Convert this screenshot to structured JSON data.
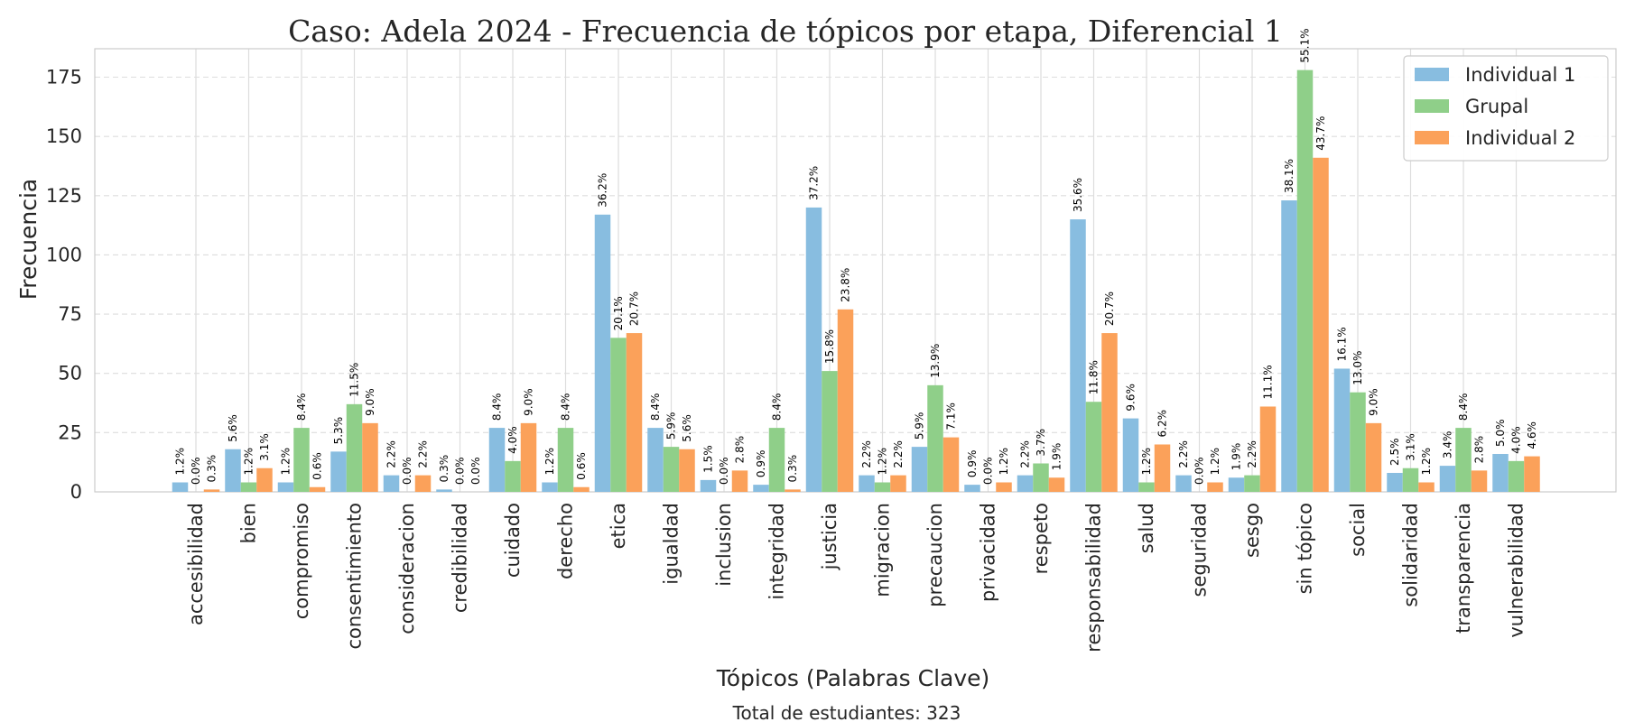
{
  "chart_data": {
    "type": "bar",
    "title": "Caso: Adela 2024 - Frecuencia de tópicos por etapa, Diferencial 1",
    "xlabel": "Tópicos (Palabras Clave)",
    "ylabel": "Frecuencia",
    "footer": "Total de estudiantes: 323",
    "ylim": [
      0,
      187
    ],
    "yticks": [
      0,
      25,
      50,
      75,
      100,
      125,
      150,
      175
    ],
    "grid": true,
    "legend_position": "top-right",
    "categories": [
      "accesibilidad",
      "bien",
      "compromiso",
      "consentimiento",
      "consideracion",
      "credibilidad",
      "cuidado",
      "derecho",
      "etica",
      "igualdad",
      "inclusion",
      "integridad",
      "justicia",
      "migracion",
      "precaucion",
      "privacidad",
      "respeto",
      "responsabilidad",
      "salud",
      "seguridad",
      "sesgo",
      "sin tópico",
      "social",
      "solidaridad",
      "transparencia",
      "vulnerabilidad"
    ],
    "series": [
      {
        "name": "Individual 1",
        "color": "#88bde0",
        "values": [
          4,
          18,
          4,
          17,
          7,
          1,
          27,
          4,
          117,
          27,
          5,
          3,
          120,
          7,
          19,
          3,
          7,
          115,
          31,
          7,
          6,
          123,
          52,
          8,
          11,
          16
        ],
        "labels": [
          "1.2%",
          "5.6%",
          "1.2%",
          "5.3%",
          "2.2%",
          "0.3%",
          "8.4%",
          "1.2%",
          "36.2%",
          "8.4%",
          "1.5%",
          "0.9%",
          "37.2%",
          "2.2%",
          "5.9%",
          "0.9%",
          "2.2%",
          "35.6%",
          "9.6%",
          "2.2%",
          "1.9%",
          "38.1%",
          "16.1%",
          "2.5%",
          "3.4%",
          "5.0%"
        ]
      },
      {
        "name": "Grupal",
        "color": "#8fcf89",
        "values": [
          0,
          4,
          27,
          37,
          0,
          0,
          13,
          27,
          65,
          19,
          0,
          27,
          51,
          4,
          45,
          0,
          12,
          38,
          4,
          0,
          7,
          178,
          42,
          10,
          27,
          13
        ],
        "labels": [
          "0.0%",
          "1.2%",
          "8.4%",
          "11.5%",
          "0.0%",
          "0.0%",
          "4.0%",
          "8.4%",
          "20.1%",
          "5.9%",
          "0.0%",
          "8.4%",
          "15.8%",
          "1.2%",
          "13.9%",
          "0.0%",
          "3.7%",
          "11.8%",
          "1.2%",
          "0.0%",
          "2.2%",
          "55.1%",
          "13.0%",
          "3.1%",
          "8.4%",
          "4.0%"
        ]
      },
      {
        "name": "Individual 2",
        "color": "#fba15a",
        "values": [
          1,
          10,
          2,
          29,
          7,
          0,
          29,
          2,
          67,
          18,
          9,
          1,
          77,
          7,
          23,
          4,
          6,
          67,
          20,
          4,
          36,
          141,
          29,
          4,
          9,
          15
        ],
        "labels": [
          "0.3%",
          "3.1%",
          "0.6%",
          "9.0%",
          "2.2%",
          "0.0%",
          "9.0%",
          "0.6%",
          "20.7%",
          "5.6%",
          "2.8%",
          "0.3%",
          "23.8%",
          "2.2%",
          "7.1%",
          "1.2%",
          "1.9%",
          "20.7%",
          "6.2%",
          "1.2%",
          "11.1%",
          "43.7%",
          "9.0%",
          "1.2%",
          "2.8%",
          "4.6%"
        ]
      }
    ]
  }
}
